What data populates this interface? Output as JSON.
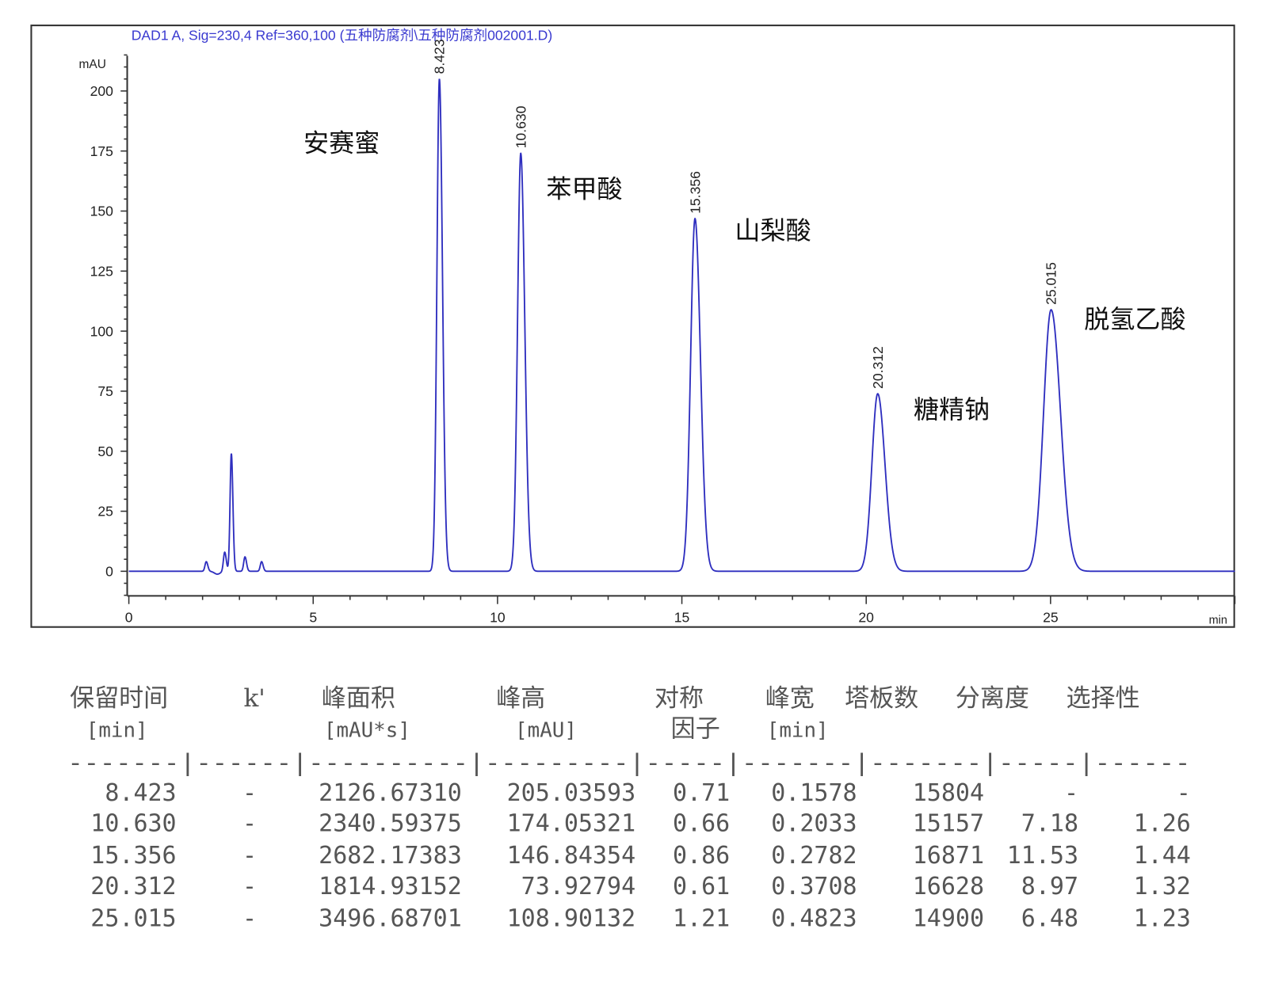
{
  "chart_data": {
    "type": "line",
    "title": "DAD1 A, Sig=230,4 Ref=360,100 (五种防腐剂\\五种防腐剂002001.D)",
    "ylabel": "mAU",
    "xlabel": "min",
    "xlim": [
      0,
      30
    ],
    "ylim": [
      -10,
      215
    ],
    "x_ticks": [
      "0",
      "5",
      "10",
      "15",
      "20",
      "25"
    ],
    "y_ticks": [
      "0",
      "25",
      "50",
      "75",
      "100",
      "125",
      "150",
      "175",
      "200"
    ],
    "grid": false,
    "colors": {
      "trace": "#2f2fbf",
      "title": "#3a3ad0",
      "axis": "#333333"
    },
    "peaks": [
      {
        "rt": 8.423,
        "rt_label": "8.423",
        "height": 205.03593,
        "width": 0.1578,
        "name": "安赛蜜"
      },
      {
        "rt": 10.63,
        "rt_label": "10.630",
        "height": 174.05321,
        "width": 0.2033,
        "name": "苯甲酸"
      },
      {
        "rt": 15.356,
        "rt_label": "15.356",
        "height": 146.84354,
        "width": 0.2782,
        "name": "山梨酸"
      },
      {
        "rt": 20.312,
        "rt_label": "20.312",
        "height": 73.92794,
        "width": 0.3708,
        "name": "糖精钠"
      },
      {
        "rt": 25.015,
        "rt_label": "25.015",
        "height": 108.90132,
        "width": 0.4823,
        "name": "脱氢乙酸"
      }
    ],
    "minor_peaks": [
      {
        "rt": 2.1,
        "height": 4
      },
      {
        "rt": 2.6,
        "height": 8
      },
      {
        "rt": 2.78,
        "height": 49
      },
      {
        "rt": 3.15,
        "height": 6
      },
      {
        "rt": 3.6,
        "height": 4
      }
    ]
  },
  "table": {
    "headers": [
      {
        "line1": "保留时间",
        "line2": "[min]"
      },
      {
        "line1": "k'",
        "line2": ""
      },
      {
        "line1": "峰面积",
        "line2": "[mAU*s]"
      },
      {
        "line1": "峰高",
        "line2": "[mAU]"
      },
      {
        "line1": "对称",
        "line2": "因子"
      },
      {
        "line1": "峰宽",
        "line2": "[min]"
      },
      {
        "line1": "塔板数",
        "line2": ""
      },
      {
        "line1": "分离度",
        "line2": ""
      },
      {
        "line1": "选择性",
        "line2": ""
      }
    ],
    "separator": "-------|------|----------|---------|-----|-------|-------|-----|------",
    "rows": [
      [
        "8.423",
        "-",
        "2126.67310",
        "205.03593",
        "0.71",
        "0.1578",
        "15804",
        "-",
        "-"
      ],
      [
        "10.630",
        "-",
        "2340.59375",
        "174.05321",
        "0.66",
        "0.2033",
        "15157",
        "7.18",
        "1.26"
      ],
      [
        "15.356",
        "-",
        "2682.17383",
        "146.84354",
        "0.86",
        "0.2782",
        "16871",
        "11.53",
        "1.44"
      ],
      [
        "20.312",
        "-",
        "1814.93152",
        "73.92794",
        "0.61",
        "0.3708",
        "16628",
        "8.97",
        "1.32"
      ],
      [
        "25.015",
        "-",
        "3496.68701",
        "108.90132",
        "1.21",
        "0.4823",
        "14900",
        "6.48",
        "1.23"
      ]
    ]
  }
}
